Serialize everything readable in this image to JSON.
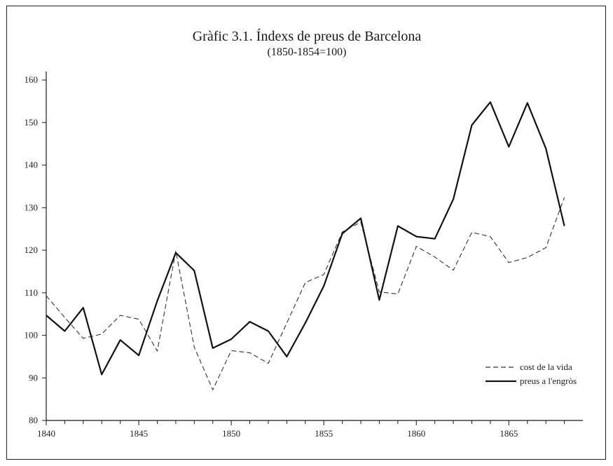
{
  "chart_data": {
    "type": "line",
    "title": "Gràfic 3.1. Índexs de preus de Barcelona",
    "subtitle": "(1850-1854=100)",
    "x": [
      1840,
      1841,
      1842,
      1843,
      1844,
      1845,
      1846,
      1847,
      1848,
      1849,
      1850,
      1851,
      1852,
      1853,
      1854,
      1855,
      1856,
      1857,
      1858,
      1859,
      1860,
      1861,
      1862,
      1863,
      1864,
      1865,
      1866,
      1867,
      1868
    ],
    "series": [
      {
        "name": "cost de la vida",
        "style": "dashed",
        "values": [
          109.3,
          104.2,
          99.3,
          100.3,
          104.7,
          103.8,
          96.3,
          119.8,
          97.2,
          87.2,
          96.4,
          95.9,
          93.4,
          102.9,
          112.4,
          114.3,
          124.3,
          126.6,
          110.2,
          109.7,
          120.9,
          118.4,
          115.3,
          124.2,
          123.2,
          117.1,
          118.3,
          120.6,
          132.4
        ]
      },
      {
        "name": "preus a l'engròs",
        "style": "solid",
        "values": [
          104.7,
          101.0,
          106.5,
          90.8,
          98.9,
          95.3,
          108.1,
          119.4,
          115.2,
          97.0,
          99.1,
          103.2,
          101.0,
          95.0,
          102.9,
          111.6,
          123.9,
          127.5,
          108.3,
          125.7,
          123.2,
          122.7,
          132.0,
          149.4,
          154.8,
          144.3,
          154.6,
          143.9,
          125.7
        ]
      }
    ],
    "yticks": [
      80,
      90,
      100,
      110,
      120,
      130,
      140,
      150,
      160
    ],
    "xticklabels": [
      1840,
      1845,
      1850,
      1855,
      1860,
      1865
    ],
    "xlim": [
      1840,
      1869
    ],
    "ylim": [
      80,
      162
    ],
    "legend": "bottom-right",
    "grid": false
  }
}
